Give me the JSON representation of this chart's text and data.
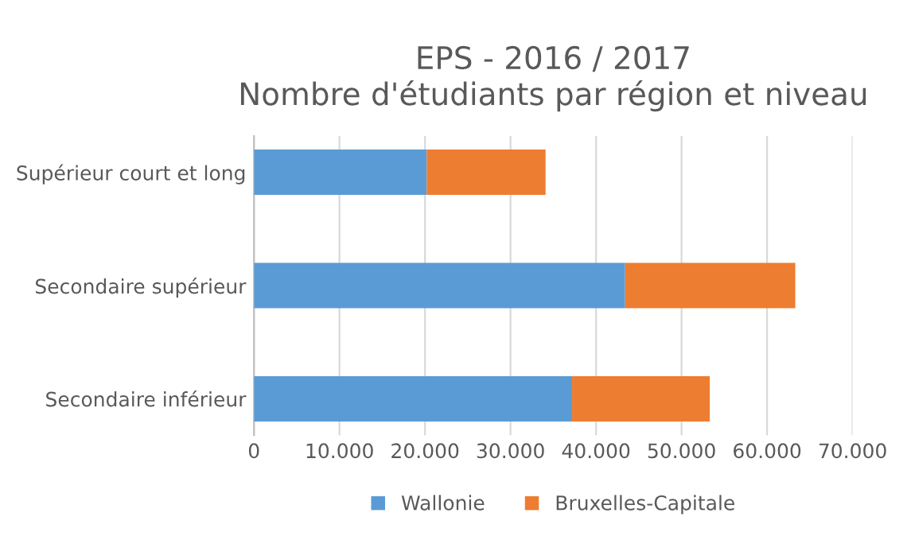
{
  "chart_data": {
    "type": "bar",
    "orientation": "horizontal",
    "stacked": true,
    "title": "EPS - 2016 / 2017\nNombre d'étudiants par région et niveau",
    "categories": [
      "Supérieur court et long",
      "Secondaire supérieur",
      "Secondaire inférieur"
    ],
    "series": [
      {
        "name": "Wallonie",
        "color": "#5b9bd5",
        "values": [
          20200,
          43400,
          37200
        ]
      },
      {
        "name": "Bruxelles-Capitale",
        "color": "#ed7d31",
        "values": [
          13900,
          19900,
          16100
        ]
      }
    ],
    "xlim": [
      0,
      70000
    ],
    "xticks": [
      {
        "value": 0,
        "label": "0"
      },
      {
        "value": 10000,
        "label": "10.000"
      },
      {
        "value": 20000,
        "label": "20.000"
      },
      {
        "value": 30000,
        "label": "30.000"
      },
      {
        "value": 40000,
        "label": "40.000"
      },
      {
        "value": 50000,
        "label": "50.000"
      },
      {
        "value": 60000,
        "label": "60.000"
      },
      {
        "value": 70000,
        "label": "70.000"
      }
    ],
    "grid": "x",
    "legend": "bottom"
  }
}
